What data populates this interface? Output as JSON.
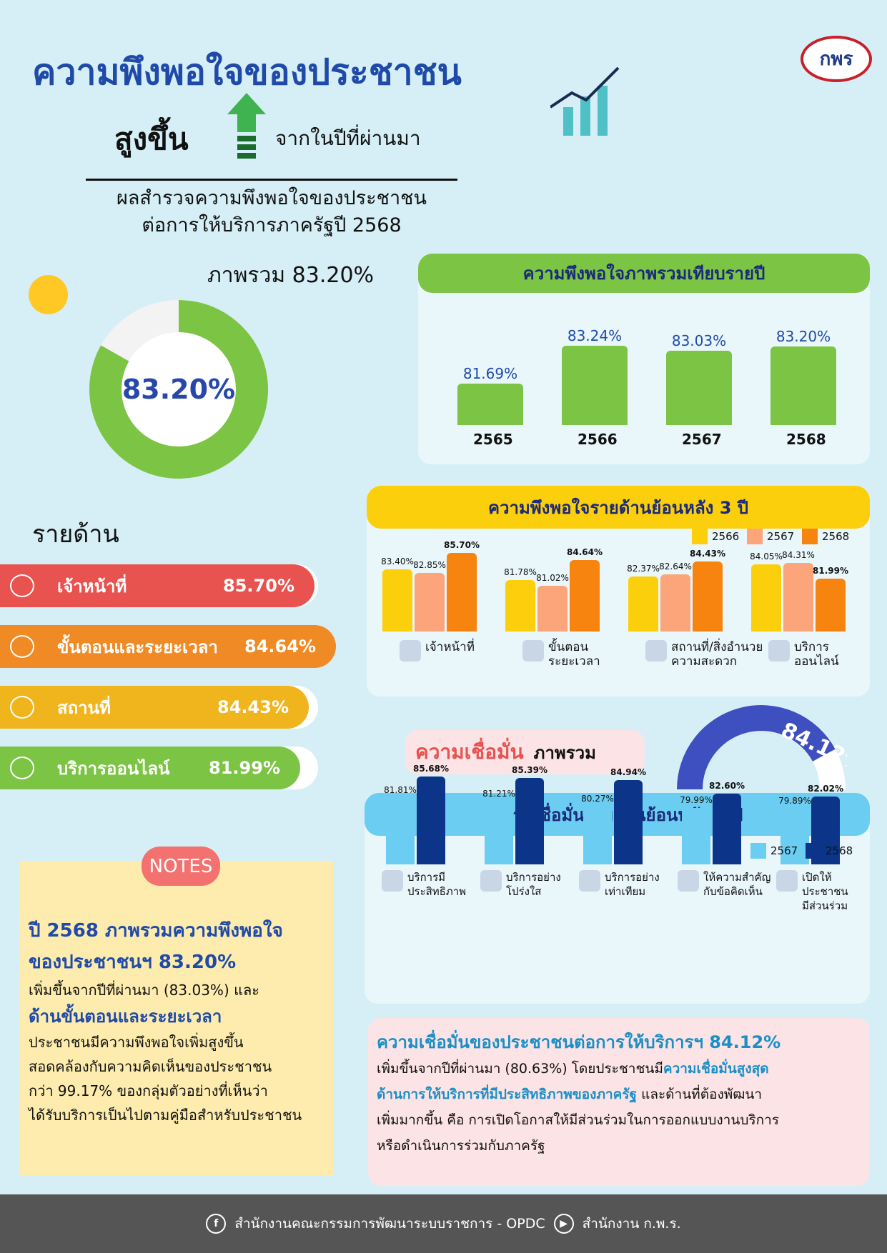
{
  "header": {
    "title": "ความพึงพอใจของประชาชน",
    "up": "สูงขึ้น",
    "from_last_year": "จากในปีที่ผ่านมา",
    "subtitle_1": "ผลสำรวจความพึงพอใจของประชาชน",
    "subtitle_2": "ต่อการให้บริการภาครัฐปี 2568",
    "logo": "กพร"
  },
  "overall": {
    "label": "ภาพรวม 83.20%",
    "value_text": "83.20%",
    "value": 83.2
  },
  "aspects": {
    "title": "รายด้าน",
    "items": [
      {
        "label": "เจ้าหน้าที่",
        "value": "85.70%",
        "color": "#e8524f",
        "icon": "staff-icon"
      },
      {
        "label": "ขั้นตอนและระยะเวลา",
        "value": "84.64%",
        "color": "#f08a24",
        "icon": "clock-icon"
      },
      {
        "label": "สถานที่",
        "value": "84.43%",
        "color": "#f0b41c",
        "icon": "building-icon"
      },
      {
        "label": "บริการออนไลน์",
        "value": "81.99%",
        "color": "#7cc444",
        "icon": "computer-icon"
      }
    ]
  },
  "confidence": {
    "label_a": "ความเชื่อมั่น",
    "label_b": "ภาพรวม",
    "value": "84.12%"
  },
  "chart_data": [
    {
      "type": "bar",
      "title": "ความพึงพอใจภาพรวมเทียบรายปี",
      "categories": [
        "2565",
        "2566",
        "2567",
        "2568"
      ],
      "values": [
        81.69,
        83.24,
        83.03,
        83.2
      ],
      "labels": [
        "81.69%",
        "83.24%",
        "83.03%",
        "83.20%"
      ],
      "ylim": [
        80,
        84
      ],
      "color": "#7cc444"
    },
    {
      "type": "bar",
      "title": "ความพึงพอใจรายด้านย้อนหลัง 3 ปี",
      "categories": [
        [
          "เจ้าหน้าที่"
        ],
        [
          "ขั้นตอน",
          "ระยะเวลา"
        ],
        [
          "สถานที่/สิ่งอำนวย",
          "ความสะดวก"
        ],
        [
          "บริการ",
          "ออนไลน์"
        ]
      ],
      "series": [
        {
          "name": "2566",
          "color": "#fccf0c",
          "values": [
            83.4,
            81.78,
            82.37,
            84.05
          ],
          "labels": [
            "83.40%",
            "81.78%",
            "82.37%",
            "84.05%"
          ]
        },
        {
          "name": "2567",
          "color": "#fca57a",
          "values": [
            82.85,
            81.02,
            82.64,
            84.31
          ],
          "labels": [
            "82.85%",
            "81.02%",
            "82.64%",
            "84.31%"
          ]
        },
        {
          "name": "2568",
          "color": "#f7840f",
          "values": [
            85.7,
            84.64,
            84.43,
            81.99
          ],
          "labels": [
            "85.70%",
            "84.64%",
            "84.43%",
            "81.99%"
          ]
        }
      ],
      "ylim": [
        74.5,
        86
      ],
      "legend": "top-right"
    },
    {
      "type": "bar",
      "title": "ความเชื่อมั่นรายด้านย้อนหลัง 2 ปี",
      "categories": [
        [
          "บริการมี",
          "ประสิทธิภาพ"
        ],
        [
          "บริการอย่าง",
          "โปร่งใส"
        ],
        [
          "บริการอย่าง",
          "เท่าเทียม"
        ],
        [
          "ให้ความสำคัญ",
          "กับข้อคิดเห็น"
        ],
        [
          "เปิดให้ประชาชน",
          "มีส่วนร่วม"
        ]
      ],
      "series": [
        {
          "name": "2567",
          "color": "#6ccdf2",
          "values": [
            81.81,
            81.21,
            80.27,
            79.99,
            79.89
          ],
          "labels": [
            "81.81%",
            "81.21%",
            "80.27%",
            "79.99%",
            "79.89%"
          ]
        },
        {
          "name": "2568",
          "color": "#0c3488",
          "values": [
            85.68,
            85.39,
            84.94,
            82.6,
            82.02
          ],
          "labels": [
            "85.68%",
            "85.39%",
            "84.94%",
            "82.60%",
            "82.02%"
          ]
        }
      ],
      "ylim": [
        70,
        86
      ],
      "legend": "top-right"
    }
  ],
  "notes": {
    "badge": "NOTES",
    "h1": "ปี 2568 ภาพรวมความพึงพอใจ",
    "h2": "ของประชาชนฯ 83.20%",
    "p1": "เพิ่มขึ้นจากปีที่ผ่านมา (83.03%) และ",
    "b1": "ด้านขั้นตอนและระยะเวลา",
    "p2": "ประชาชนมีความพึงพอใจเพิ่มสูงขึ้น",
    "p3": "สอดคล้องกับความคิดเห็นของประชาชน",
    "p4": "กว่า 99.17% ของกลุ่มตัวอย่างที่เห็นว่า",
    "p5": "ได้รับบริการเป็นไปตามคู่มือสำหรับประชาชน"
  },
  "conf_text": {
    "h": "ความเชื่อมั่นของประชาชนต่อการให้บริการฯ 84.12%",
    "p1": "เพิ่มขึ้นจากปีที่ผ่านมา (80.63%) โดยประชาชนมี",
    "hl1": "ความเชื่อมั่นสูงสุด",
    "hl2": "ด้านการให้บริการที่มีประสิทธิภาพของภาครัฐ",
    "p2": " และด้านที่ต้องพัฒนา",
    "p3": "เพิ่มมากขึ้น คือ การเปิดโอกาสให้มีส่วนร่วมในการออกแบบงานบริการ",
    "p4": "หรือดำเนินการร่วมกับภาครัฐ"
  },
  "footer": {
    "facebook": "สำนักงานคณะกรรมการพัฒนาระบบราชการ - OPDC",
    "youtube": "สำนักงาน ก.พ.ร."
  }
}
